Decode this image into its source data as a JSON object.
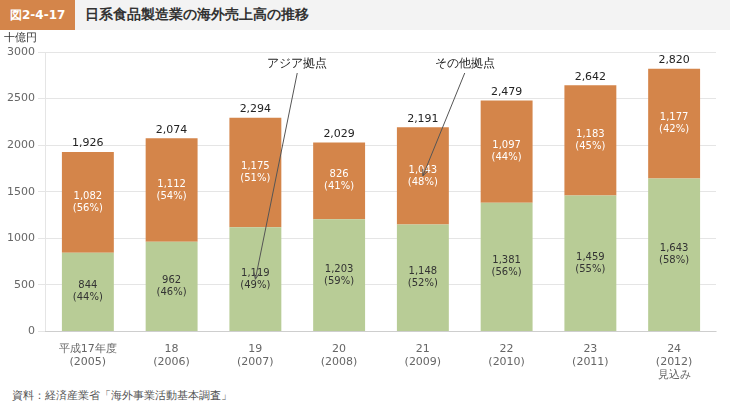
{
  "chart_data": {
    "type": "bar",
    "figure_number": "図2-4-17",
    "title": "日系食品製造業の海外売上高の推移",
    "ylabel": "十億円",
    "source": "資料：経済産業省「海外事業活動基本調査」",
    "categories": [
      "平成17年度\n(2005)",
      "18\n(2006)",
      "19\n(2007)",
      "20\n(2008)",
      "21\n(2009)",
      "22\n(2010)",
      "23\n(2011)",
      "24\n(2012)\n見込み"
    ],
    "series": [
      {
        "name": "アジア拠点",
        "color": "#b8cc96",
        "values": [
          844,
          962,
          1119,
          1203,
          1148,
          1381,
          1459,
          1643
        ],
        "value_labels": [
          "844\n(44%)",
          "962\n(46%)",
          "1,119\n(49%)",
          "1,203\n(59%)",
          "1,148\n(52%)",
          "1,381\n(56%)",
          "1,459\n(55%)",
          "1,643\n(58%)"
        ]
      },
      {
        "name": "その他拠点",
        "color": "#d4854a",
        "values": [
          1082,
          1112,
          1175,
          826,
          1043,
          1097,
          1183,
          1177
        ],
        "value_labels": [
          "1,082\n(56%)",
          "1,112\n(54%)",
          "1,175\n(51%)",
          "826\n(41%)",
          "1,043\n(48%)",
          "1,097\n(44%)",
          "1,183\n(45%)",
          "1,177\n(42%)"
        ]
      }
    ],
    "totals": [
      1926,
      2074,
      2294,
      2029,
      2191,
      2479,
      2642,
      2820
    ],
    "total_labels": [
      "1,926",
      "2,074",
      "2,294",
      "2,029",
      "2,191",
      "2,479",
      "2,642",
      "2,820"
    ],
    "stacked": true,
    "data_labels": true,
    "grid": true,
    "ylim": [
      0,
      3000
    ],
    "yticks": [
      0,
      500,
      1000,
      1500,
      2000,
      2500,
      3000
    ],
    "annotations": [
      {
        "text": "アジア拠点",
        "category": "19\n(2007)",
        "y": 560
      },
      {
        "text": "その他拠点",
        "category": "21\n(2009)",
        "y": 1670
      }
    ]
  }
}
